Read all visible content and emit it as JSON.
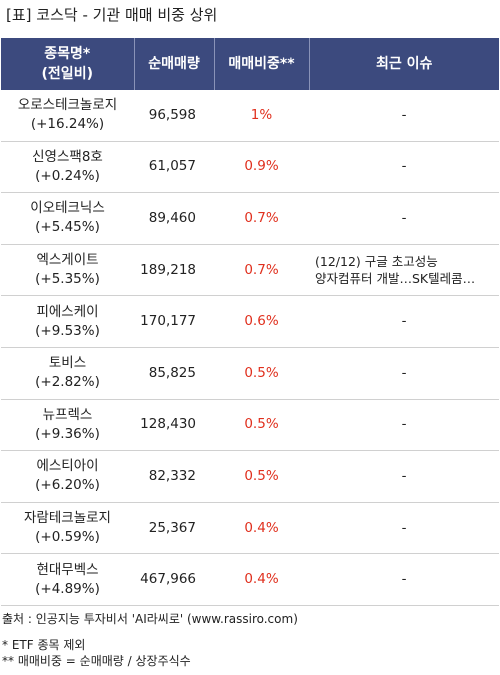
{
  "title": "[표] 코스닥 - 기관 매매 비중 상위",
  "headers": {
    "name_line1": "종목명*",
    "name_line2": "(전일비)",
    "volume": "순매매량",
    "ratio": "매매비중**",
    "issue": "최근 이슈"
  },
  "rows": [
    {
      "name": "오로스테크놀로지",
      "change": "(+16.24%)",
      "volume": "96,598",
      "ratio": "1%",
      "issue": "-"
    },
    {
      "name": "신영스팩8호",
      "change": "(+0.24%)",
      "volume": "61,057",
      "ratio": "0.9%",
      "issue": "-"
    },
    {
      "name": "이오테크닉스",
      "change": "(+5.45%)",
      "volume": "89,460",
      "ratio": "0.7%",
      "issue": "-"
    },
    {
      "name": "엑스게이트",
      "change": "(+5.35%)",
      "volume": "189,218",
      "ratio": "0.7%",
      "issue_line1": "(12/12) 구글 초고성능",
      "issue_line2": "양자컴퓨터 개발…SK텔레콤…"
    },
    {
      "name": "피에스케이",
      "change": "(+9.53%)",
      "volume": "170,177",
      "ratio": "0.6%",
      "issue": "-"
    },
    {
      "name": "토비스",
      "change": "(+2.82%)",
      "volume": "85,825",
      "ratio": "0.5%",
      "issue": "-"
    },
    {
      "name": "뉴프렉스",
      "change": "(+9.36%)",
      "volume": "128,430",
      "ratio": "0.5%",
      "issue": "-"
    },
    {
      "name": "에스티아이",
      "change": "(+6.20%)",
      "volume": "82,332",
      "ratio": "0.5%",
      "issue": "-"
    },
    {
      "name": "자람테크놀로지",
      "change": "(+0.59%)",
      "volume": "25,367",
      "ratio": "0.4%",
      "issue": "-"
    },
    {
      "name": "현대무벡스",
      "change": "(+4.89%)",
      "volume": "467,966",
      "ratio": "0.4%",
      "issue": "-"
    }
  ],
  "footer": {
    "source": "출처 : 인공지능 투자비서 'AI라씨로' (www.rassiro.com)",
    "note1": "* ETF 종목 제외",
    "note2": "** 매매비중 = 순매매량 / 상장주식수"
  },
  "colors": {
    "header_bg": "#3c4a7e",
    "ratio_text": "#e0301e"
  }
}
